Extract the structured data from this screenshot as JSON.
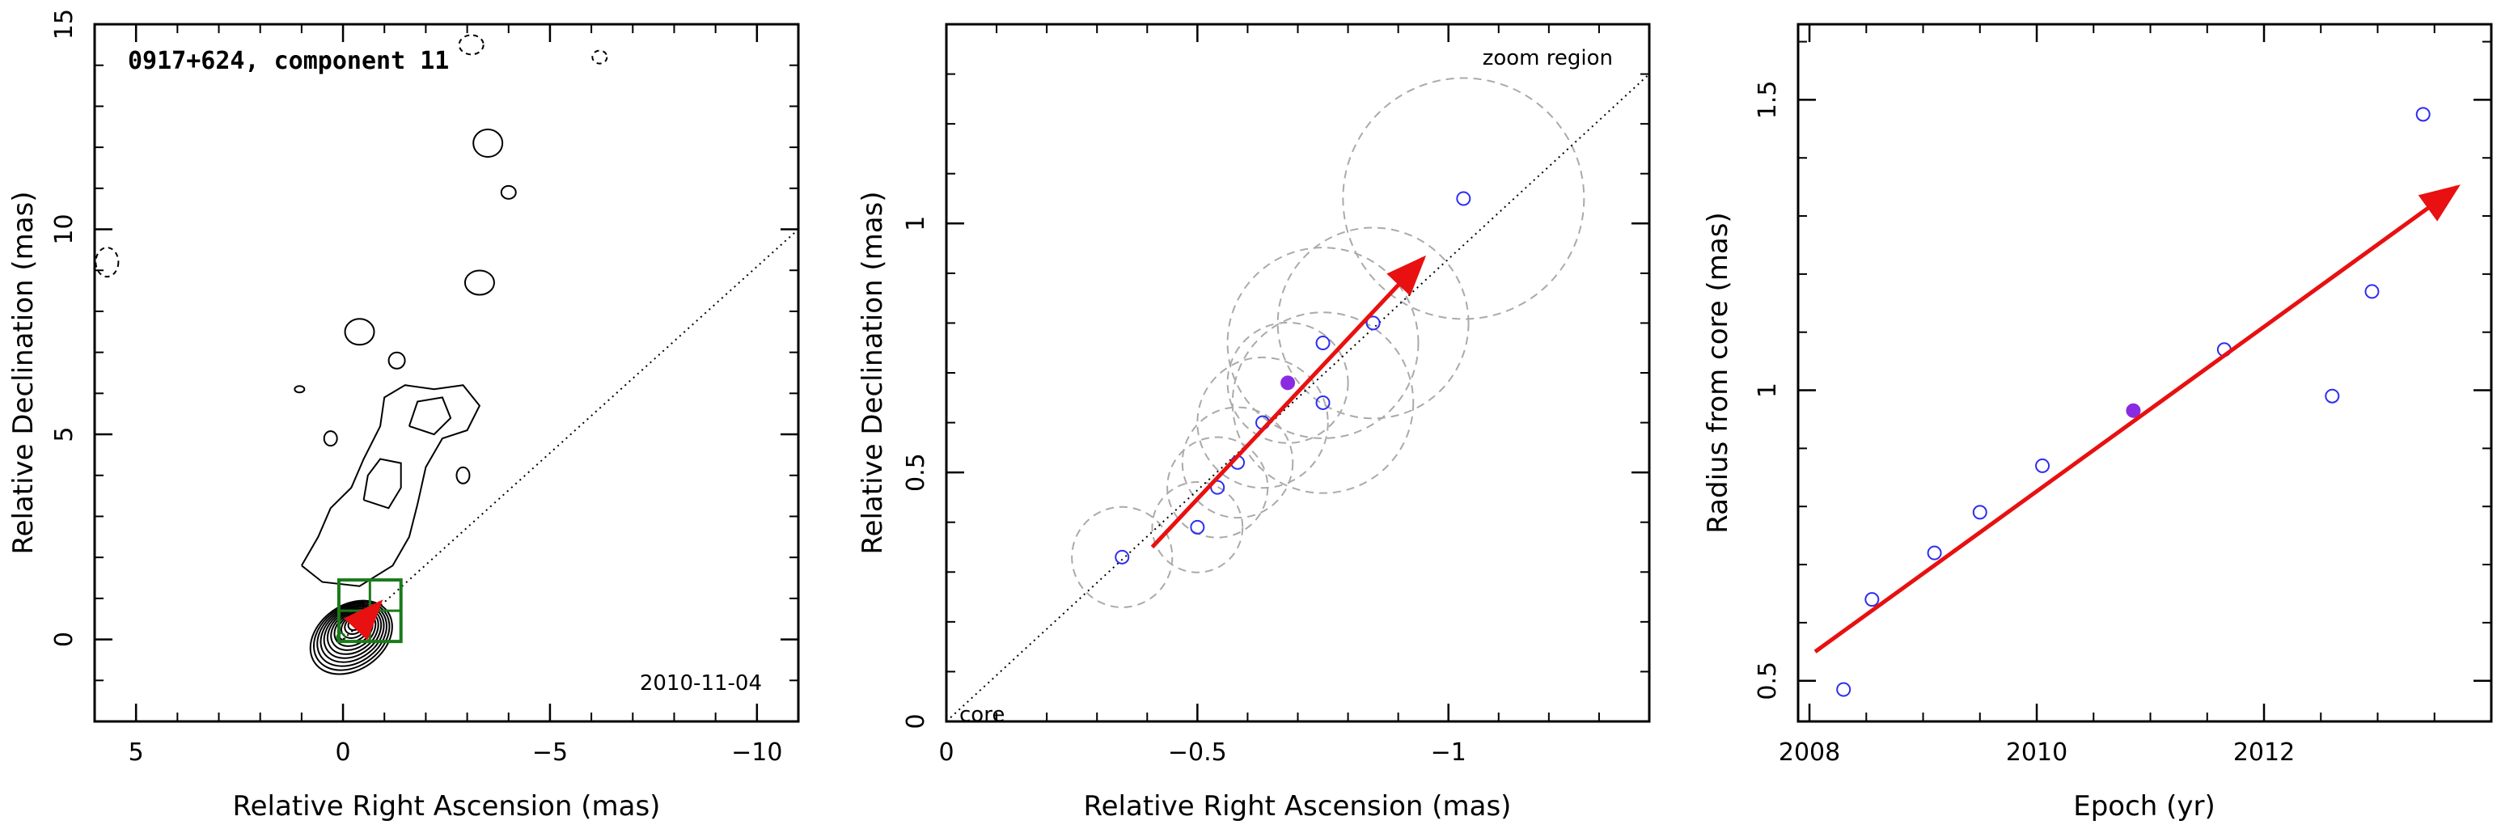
{
  "chart_data": [
    {
      "type": "contour",
      "panel": "left",
      "annotation_title": "0917+624, component 11",
      "annotation_date": "2010-11-04",
      "xlabel": "Relative Right Ascension (mas)",
      "ylabel": "Relative Declination (mas)",
      "xlim": [
        6,
        -11
      ],
      "ylim": [
        -2,
        15
      ],
      "xticks": [
        5,
        0,
        -5,
        -10
      ],
      "xtick_labels": [
        "5",
        "0",
        "−5",
        "−10"
      ],
      "yticks": [
        0,
        5,
        10,
        15
      ],
      "ytick_labels": [
        "0",
        "5",
        "10",
        "15"
      ],
      "jet_line": {
        "from": [
          0,
          0
        ],
        "to": [
          -11,
          10
        ]
      },
      "core_contours_major_minor_levels": 12,
      "zoom_box": {
        "x": [
          0.1,
          -1.4
        ],
        "y": [
          -0.05,
          1.45
        ]
      },
      "arrow": {
        "from": [
          -0.4,
          0.35
        ],
        "to": [
          -0.9,
          0.9
        ]
      }
    },
    {
      "type": "scatter",
      "panel": "middle",
      "annotation_region": "zoom region",
      "annotation_core": "core",
      "xlabel": "Relative Right Ascension (mas)",
      "ylabel": "Relative Declination (mas)",
      "xlim": [
        0,
        -1.4
      ],
      "ylim": [
        0,
        1.4
      ],
      "xticks": [
        0,
        -0.5,
        -1
      ],
      "xtick_labels": [
        "0",
        "−0.5",
        "−1"
      ],
      "yticks": [
        0,
        0.5,
        1
      ],
      "ytick_labels": [
        "0",
        "0.5",
        "1"
      ],
      "points": [
        {
          "x": -0.35,
          "y": 0.33,
          "r": 0.1,
          "filled": false
        },
        {
          "x": -0.5,
          "y": 0.39,
          "r": 0.09,
          "filled": false
        },
        {
          "x": -0.54,
          "y": 0.47,
          "r": 0.1,
          "filled": false
        },
        {
          "x": -0.58,
          "y": 0.52,
          "r": 0.11,
          "filled": false
        },
        {
          "x": -0.63,
          "y": 0.6,
          "r": 0.13,
          "filled": false
        },
        {
          "x": -0.68,
          "y": 0.68,
          "r": 0.12,
          "filled": true
        },
        {
          "x": -0.75,
          "y": 0.64,
          "r": 0.18,
          "filled": false
        },
        {
          "x": -0.75,
          "y": 0.76,
          "r": 0.19,
          "filled": false
        },
        {
          "x": -0.85,
          "y": 0.8,
          "r": 0.19,
          "filled": false
        },
        {
          "x": -1.03,
          "y": 1.05,
          "r": 0.24,
          "filled": false
        }
      ],
      "jet_line": {
        "from": [
          0,
          0
        ],
        "to": [
          -1.4,
          1.3
        ]
      },
      "arrow": {
        "from": [
          -0.41,
          0.35
        ],
        "to": [
          -0.95,
          0.93
        ]
      }
    },
    {
      "type": "scatter",
      "panel": "right",
      "xlabel": "Epoch (yr)",
      "ylabel": "Radius from core (mas)",
      "xlim": [
        2007.9,
        2014
      ],
      "ylim": [
        0.43,
        1.63
      ],
      "xticks": [
        2008,
        2010,
        2012
      ],
      "xtick_labels": [
        "2008",
        "2010",
        "2012"
      ],
      "yticks": [
        0.5,
        1,
        1.5
      ],
      "ytick_labels": [
        "0.5",
        "1",
        "1.5"
      ],
      "points": [
        {
          "x": 2008.3,
          "y": 0.485,
          "filled": false
        },
        {
          "x": 2008.55,
          "y": 0.64,
          "filled": false
        },
        {
          "x": 2009.1,
          "y": 0.72,
          "filled": false
        },
        {
          "x": 2009.5,
          "y": 0.79,
          "filled": false
        },
        {
          "x": 2010.05,
          "y": 0.87,
          "filled": false
        },
        {
          "x": 2010.85,
          "y": 0.965,
          "filled": true
        },
        {
          "x": 2011.65,
          "y": 1.07,
          "filled": false
        },
        {
          "x": 2012.6,
          "y": 0.99,
          "filled": false
        },
        {
          "x": 2012.95,
          "y": 1.17,
          "filled": false
        },
        {
          "x": 2013.4,
          "y": 1.475,
          "filled": false
        }
      ],
      "arrow": {
        "from": [
          2008.05,
          0.55
        ],
        "to": [
          2013.7,
          1.35
        ]
      }
    }
  ],
  "colors": {
    "point": "#2d2df0",
    "point_filled": "#8a2be2",
    "arrow": "#e81010",
    "zoom_box": "#1a7a1a",
    "circle": "#aaaaaa",
    "contour": "#000000"
  }
}
